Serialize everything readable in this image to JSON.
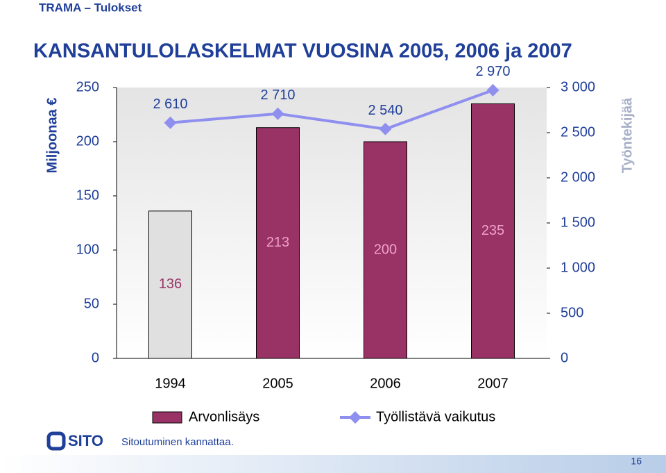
{
  "header": {
    "title": "TRAMA – Tulokset"
  },
  "chart_data": {
    "type": "bar_line",
    "title": "KANSANTULOLASKELMAT VUOSINA 2005, 2006 ja 2007",
    "ylabel": "Miljoonaa €",
    "y2label": "Työntekijää",
    "categories": [
      "1994",
      "2005",
      "2006",
      "2007"
    ],
    "series": [
      {
        "name": "Arvonlisäys",
        "type": "bar",
        "color": "#993366",
        "colors": [
          "#e0e0e0",
          "#993366",
          "#993366",
          "#993366"
        ],
        "values": [
          136,
          213,
          200,
          235
        ]
      },
      {
        "name": "Työllistävä vaikutus",
        "type": "line",
        "axis": "y2",
        "color": "#8f8ff0",
        "values": [
          2610,
          2710,
          2540,
          2970
        ],
        "value_labels": [
          "2 610",
          "2 710",
          "2 540",
          "2 970"
        ]
      }
    ],
    "ylim": [
      0,
      250
    ],
    "yticks": [
      0,
      50,
      100,
      150,
      200,
      250
    ],
    "y2lim": [
      0,
      3000
    ],
    "y2ticks": [
      0,
      500,
      {
        "value": 1000,
        "label": "1 000"
      },
      {
        "value": 1500,
        "label": "1 500"
      },
      {
        "value": 2000,
        "label": "2 000"
      },
      {
        "value": 2500,
        "label": "2 500"
      },
      {
        "value": 3000,
        "label": "3 000"
      }
    ],
    "legend": "bottom"
  },
  "footer": {
    "logo": "SITO",
    "slogan": "Sitoutuminen kannattaa.",
    "page": "16"
  }
}
